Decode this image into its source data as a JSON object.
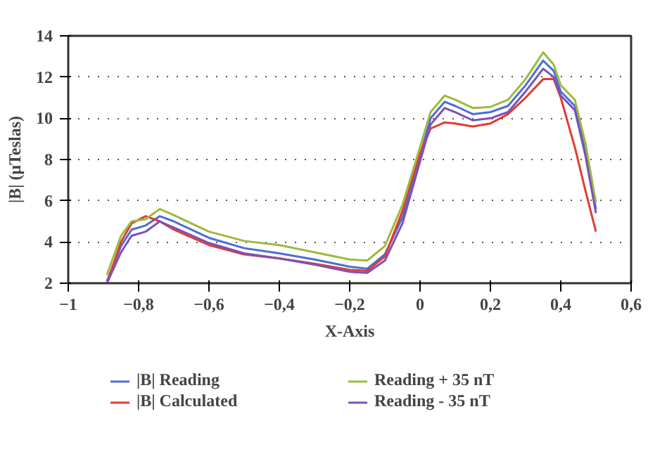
{
  "chart_data": {
    "type": "line",
    "xlabel": "X-Axis",
    "ylabel": "|B| (μTeslas)",
    "x": [
      -0.89,
      -0.85,
      -0.82,
      -0.78,
      -0.74,
      -0.7,
      -0.6,
      -0.5,
      -0.4,
      -0.3,
      -0.2,
      -0.15,
      -0.1,
      -0.05,
      0,
      0.03,
      0.07,
      0.1,
      0.15,
      0.2,
      0.25,
      0.3,
      0.35,
      0.38,
      0.4,
      0.44,
      0.47,
      0.5
    ],
    "series": [
      {
        "name": "|B| Reading",
        "color": "#4a6fd4",
        "values": [
          2.1,
          3.8,
          4.6,
          4.8,
          5.25,
          5.0,
          4.2,
          3.7,
          3.45,
          3.15,
          2.8,
          2.7,
          3.4,
          5.2,
          8.2,
          10.0,
          10.8,
          10.6,
          10.2,
          10.3,
          10.6,
          11.6,
          12.8,
          12.3,
          11.3,
          10.6,
          8.5,
          5.6
        ]
      },
      {
        "name": "|B| Calculated",
        "color": "#e03c31",
        "values": [
          2.0,
          4.0,
          4.9,
          5.25,
          5.0,
          4.6,
          3.85,
          3.4,
          3.2,
          2.95,
          2.65,
          2.6,
          3.3,
          5.5,
          8.3,
          9.5,
          9.8,
          9.75,
          9.6,
          9.75,
          10.2,
          11.0,
          11.9,
          11.9,
          11.0,
          8.6,
          6.5,
          4.5
        ]
      },
      {
        "name": "Reading + 35 nT",
        "color": "#9bbb3c",
        "values": [
          2.4,
          4.3,
          5.0,
          5.1,
          5.6,
          5.3,
          4.5,
          4.05,
          3.85,
          3.5,
          3.15,
          3.1,
          3.8,
          5.8,
          8.6,
          10.3,
          11.1,
          10.9,
          10.5,
          10.55,
          10.9,
          11.9,
          13.2,
          12.6,
          11.6,
          10.9,
          8.8,
          5.9
        ]
      },
      {
        "name": "Reading - 35 nT",
        "color": "#7a52b8",
        "values": [
          2.0,
          3.5,
          4.3,
          4.5,
          5.0,
          4.7,
          3.95,
          3.45,
          3.2,
          2.9,
          2.55,
          2.5,
          3.1,
          4.9,
          7.9,
          9.7,
          10.5,
          10.3,
          9.9,
          10.0,
          10.3,
          11.3,
          12.4,
          12.0,
          11.1,
          10.4,
          8.2,
          5.4
        ]
      }
    ],
    "xlim": [
      -1,
      0.6
    ],
    "ylim": [
      2,
      14
    ],
    "xticks": [
      {
        "value": -1,
        "label": "−1"
      },
      {
        "value": -0.8,
        "label": "−0,8"
      },
      {
        "value": -0.6,
        "label": "−0,6"
      },
      {
        "value": -0.4,
        "label": "−0,4"
      },
      {
        "value": -0.2,
        "label": "−0,2"
      },
      0,
      {
        "value": 0.2,
        "label": "0,2"
      },
      {
        "value": 0.4,
        "label": "0,4"
      },
      {
        "value": 0.6,
        "label": "0,6"
      }
    ],
    "yticks": [
      2,
      4,
      6,
      8,
      10,
      12,
      14
    ],
    "grid": "y",
    "legend": "bottom",
    "line_style": "solid"
  }
}
